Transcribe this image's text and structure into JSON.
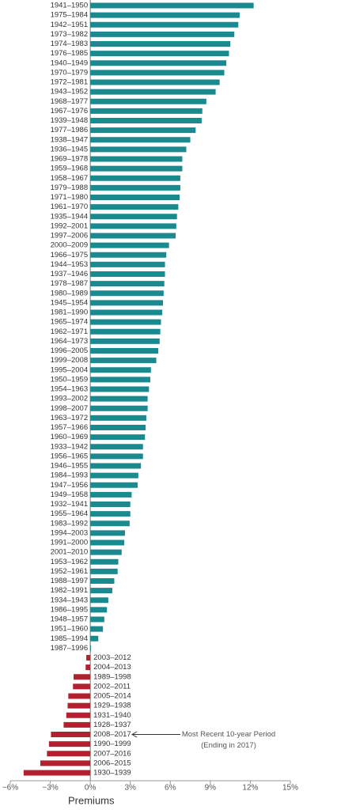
{
  "chart_data": {
    "type": "hbar",
    "x_label": "Premiums",
    "annotation": [
      "Most Recent 10-year Period",
      "(Ending in 2017)"
    ],
    "annotation_category": "2008–2017",
    "color": "#1b8a8e",
    "negative_color": "#b3202f",
    "categories": [
      "1941–1950",
      "1975–1984",
      "1942–1951",
      "1973–1982",
      "1974–1983",
      "1976–1985",
      "1940–1949",
      "1970–1979",
      "1972–1981",
      "1943–1952",
      "1968–1977",
      "1967–1976",
      "1939–1948",
      "1977–1986",
      "1938–1947",
      "1936–1945",
      "1969–1978",
      "1959–1968",
      "1958–1967",
      "1979–1988",
      "1971–1980",
      "1961–1970",
      "1935–1944",
      "1992–2001",
      "1997–2006",
      "2000–2009",
      "1966–1975",
      "1944–1953",
      "1937–1946",
      "1978–1987",
      "1980–1989",
      "1945–1954",
      "1981–1990",
      "1965–1974",
      "1962–1971",
      "1964–1973",
      "1996–2005",
      "1999–2008",
      "1995–2004",
      "1950–1959",
      "1954–1963",
      "1993–2002",
      "1998–2007",
      "1963–1972",
      "1957–1966",
      "1960–1969",
      "1933–1942",
      "1956–1965",
      "1946–1955",
      "1984–1993",
      "1947–1956",
      "1949–1958",
      "1932–1941",
      "1955–1964",
      "1983–1992",
      "1994–2003",
      "1991–2000",
      "2001–2010",
      "1953–1962",
      "1952–1961",
      "1988–1997",
      "1982–1991",
      "1934–1943",
      "1986–1995",
      "1948–1957",
      "1951–1960",
      "1985–1994",
      "1987–1996",
      "2003–2012",
      "2004–2013",
      "1989–1998",
      "2002–2011",
      "2005–2014",
      "1929–1938",
      "1931–1940",
      "1928–1937",
      "2008–2017",
      "1990–1999",
      "2007–2016",
      "2006–2015",
      "1930–1939"
    ],
    "values": [
      12.25,
      11.2,
      11.1,
      10.8,
      10.5,
      10.4,
      10.2,
      10.05,
      9.7,
      9.4,
      8.7,
      8.4,
      8.35,
      7.9,
      7.5,
      7.2,
      6.9,
      6.9,
      6.75,
      6.75,
      6.7,
      6.6,
      6.5,
      6.45,
      6.4,
      5.9,
      5.7,
      5.6,
      5.6,
      5.55,
      5.5,
      5.45,
      5.4,
      5.3,
      5.25,
      5.2,
      5.1,
      4.95,
      4.55,
      4.5,
      4.4,
      4.3,
      4.3,
      4.2,
      4.15,
      4.1,
      3.95,
      3.95,
      3.8,
      3.6,
      3.55,
      3.1,
      3.0,
      3.0,
      2.95,
      2.6,
      2.55,
      2.35,
      2.1,
      2.05,
      1.8,
      1.65,
      1.35,
      1.25,
      1.05,
      0.95,
      0.6,
      0.05,
      -0.3,
      -0.35,
      -1.25,
      -1.3,
      -1.65,
      -1.7,
      -1.8,
      -2.0,
      -2.95,
      -3.1,
      -3.25,
      -3.75,
      -5.0
    ],
    "xlim": [
      -6,
      15
    ],
    "xticks": [
      {
        "value": -6,
        "label": "−6%"
      },
      {
        "value": -3,
        "label": "−3%"
      },
      {
        "value": 0,
        "label": "0%"
      },
      {
        "value": 3,
        "label": "3%"
      },
      {
        "value": 6,
        "label": "6%"
      },
      {
        "value": 9,
        "label": "9%"
      },
      {
        "value": 12,
        "label": "12%"
      },
      {
        "value": 15,
        "label": "15%"
      }
    ]
  }
}
